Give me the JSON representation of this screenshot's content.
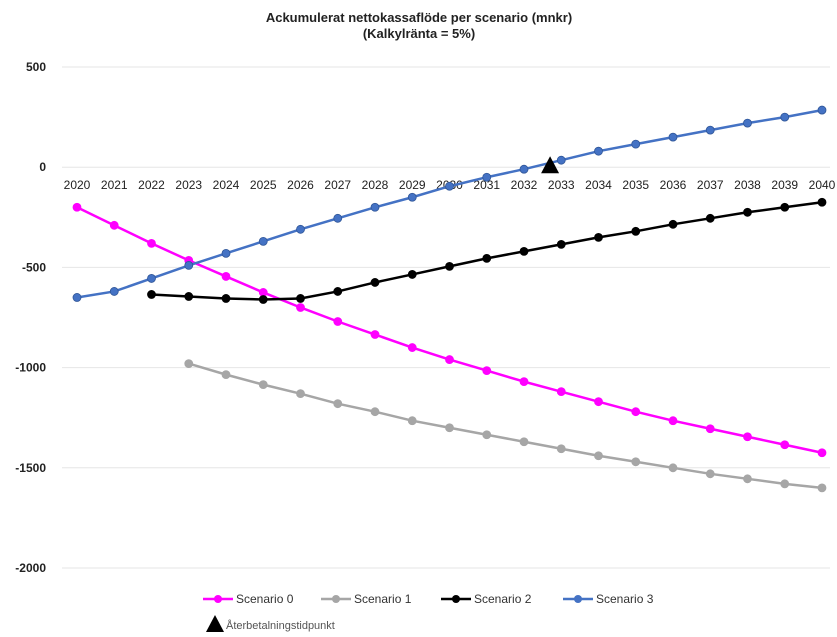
{
  "chart_data": {
    "type": "line",
    "title": "Ackumulerat  nettokassaflöde  per  scenario  (mnkr)",
    "subtitle": "(Kalkylränta  = 5%)",
    "xlabel": "",
    "ylabel": "",
    "ylim": [
      -2000,
      500
    ],
    "yticks": [
      500,
      0,
      -500,
      -1000,
      -1500,
      -2000
    ],
    "categories": [
      "2020",
      "2021",
      "2022",
      "2023",
      "2024",
      "2025",
      "2026",
      "2027",
      "2028",
      "2029",
      "2030",
      "2031",
      "2032",
      "2033",
      "2034",
      "2035",
      "2036",
      "2037",
      "2038",
      "2039",
      "2040"
    ],
    "grid": true,
    "legend_position": "bottom",
    "series": [
      {
        "name": "Scenario 0",
        "color": "#ff00ff",
        "values": [
          -200,
          -290,
          -380,
          -465,
          -545,
          -625,
          -700,
          -770,
          -835,
          -900,
          -960,
          -1015,
          -1070,
          -1120,
          -1170,
          -1220,
          -1265,
          -1305,
          -1345,
          -1385,
          -1425
        ]
      },
      {
        "name": "Scenario 1",
        "color": "#a6a6a6",
        "values": [
          null,
          null,
          null,
          -980,
          -1035,
          -1085,
          -1130,
          -1180,
          -1220,
          -1265,
          -1300,
          -1335,
          -1370,
          -1405,
          -1440,
          -1470,
          -1500,
          -1530,
          -1555,
          -1580,
          -1600
        ]
      },
      {
        "name": "Scenario 2",
        "color": "#000000",
        "values": [
          null,
          null,
          -635,
          -645,
          -655,
          -660,
          -655,
          -620,
          -575,
          -535,
          -495,
          -455,
          -420,
          -385,
          -350,
          -320,
          -285,
          -255,
          -225,
          -200,
          -175
        ]
      },
      {
        "name": "Scenario 3",
        "color": "#4472c4",
        "values": [
          -650,
          -620,
          -555,
          -490,
          -430,
          -370,
          -310,
          -255,
          -200,
          -150,
          -95,
          -50,
          -10,
          35,
          80,
          115,
          150,
          185,
          220,
          250,
          285
        ]
      }
    ],
    "annotation": {
      "label": "Återbetalningstidpunkt",
      "x_year": 2032.7,
      "y": 0,
      "color": "#000000",
      "icon": "triangle-icon"
    }
  }
}
